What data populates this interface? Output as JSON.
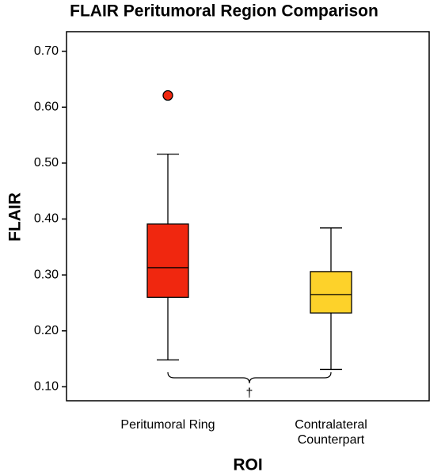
{
  "chart_data": {
    "type": "box",
    "title": "FLAIR Peritumoral Region Comparison",
    "x_label": "ROI",
    "y_label": "FLAIR",
    "categories": [
      "Peritumoral Ring",
      "Contralateral Counterpart"
    ],
    "series": [
      {
        "color": "#f0270f",
        "whislo": 0.148,
        "q1": 0.26,
        "med": 0.313,
        "q3": 0.391,
        "whishi": 0.516,
        "outliers": [
          0.621
        ]
      },
      {
        "color": "#fdd22a",
        "whislo": 0.131,
        "q1": 0.232,
        "med": 0.265,
        "q3": 0.306,
        "whishi": 0.384,
        "outliers": []
      }
    ],
    "ylim": [
      0.075,
      0.735
    ],
    "yticks": [
      {
        "value": 0.1,
        "label": "0.10"
      },
      {
        "value": 0.2,
        "label": "0.20"
      },
      {
        "value": 0.3,
        "label": "0.30"
      },
      {
        "value": 0.4,
        "label": "0.40"
      },
      {
        "value": 0.5,
        "label": "0.50"
      },
      {
        "value": 0.6,
        "label": "0.60"
      },
      {
        "value": 0.7,
        "label": "0.70"
      }
    ],
    "annotation": "†"
  }
}
